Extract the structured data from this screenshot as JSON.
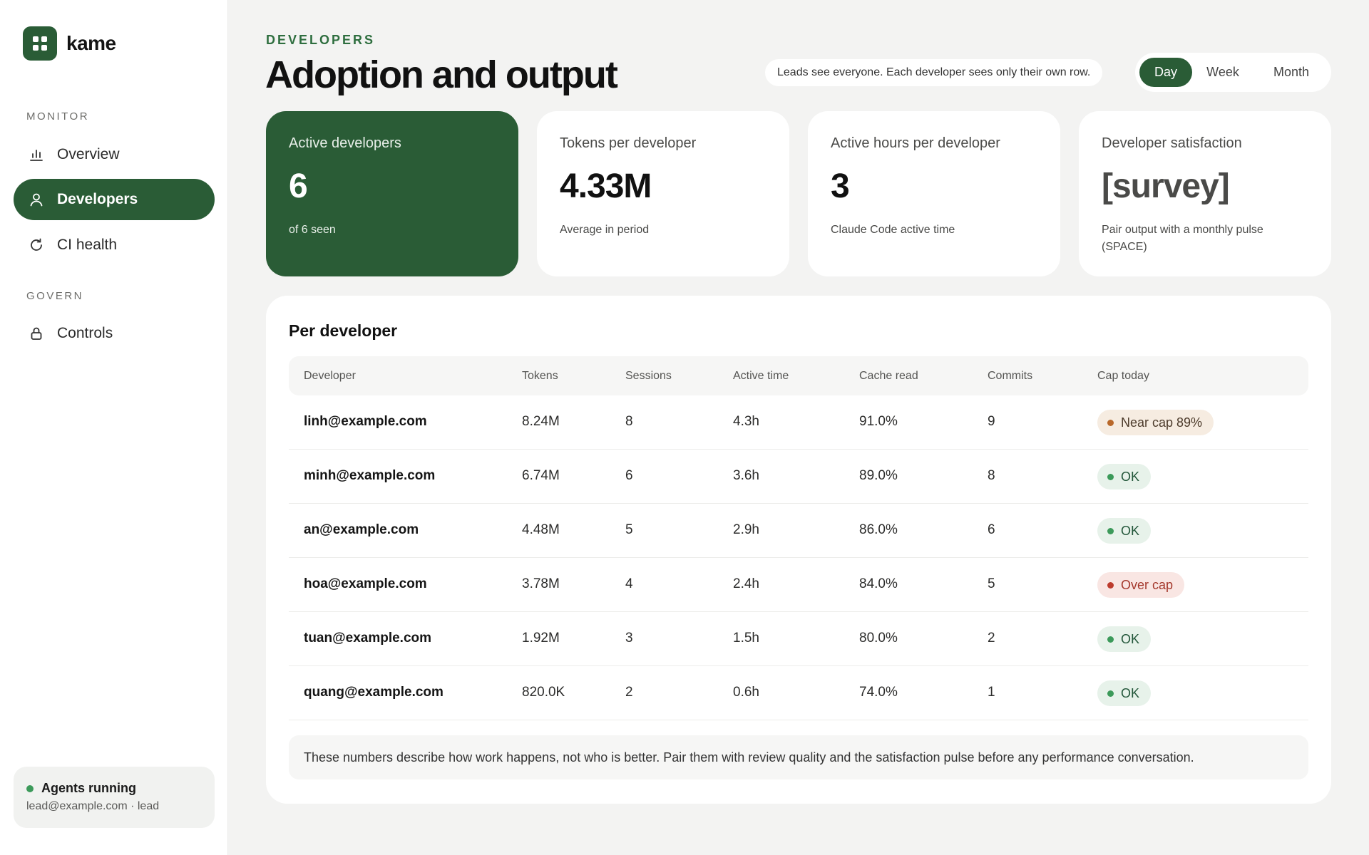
{
  "app": {
    "name": "kame"
  },
  "sidebar": {
    "sections": [
      {
        "label": "MONITOR"
      },
      {
        "label": "GOVERN"
      }
    ],
    "items": [
      {
        "label": "Overview",
        "icon": "bar-chart-icon"
      },
      {
        "label": "Developers",
        "icon": "user-icon",
        "active": true
      },
      {
        "label": "CI health",
        "icon": "refresh-icon"
      },
      {
        "label": "Controls",
        "icon": "lock-icon"
      }
    ],
    "status": {
      "title": "Agents running",
      "user": "lead@example.com · lead"
    }
  },
  "header": {
    "eyebrow": "DEVELOPERS",
    "title": "Adoption and output",
    "visibility_note": "Leads see everyone. Each developer sees only their own row.",
    "period_options": [
      "Day",
      "Week",
      "Month"
    ],
    "selected_period": "Day"
  },
  "stats": [
    {
      "label": "Active developers",
      "value": "6",
      "sub": "of 6 seen"
    },
    {
      "label": "Tokens per developer",
      "value": "4.33M",
      "sub": "Average in period"
    },
    {
      "label": "Active hours per developer",
      "value": "3",
      "sub": "Claude Code active time"
    },
    {
      "label": "Developer satisfaction",
      "value": "[survey]",
      "sub": "Pair output with a monthly pulse (SPACE)"
    }
  ],
  "table": {
    "title": "Per developer",
    "columns": [
      "Developer",
      "Tokens",
      "Sessions",
      "Active time",
      "Cache read",
      "Commits",
      "Cap today"
    ],
    "rows": [
      {
        "developer": "linh@example.com",
        "tokens": "8.24M",
        "sessions": "8",
        "active_time": "4.3h",
        "cache_read": "91.0%",
        "commits": "9",
        "cap": "Near cap 89%",
        "cap_status": "warn"
      },
      {
        "developer": "minh@example.com",
        "tokens": "6.74M",
        "sessions": "6",
        "active_time": "3.6h",
        "cache_read": "89.0%",
        "commits": "8",
        "cap": "OK",
        "cap_status": "ok"
      },
      {
        "developer": "an@example.com",
        "tokens": "4.48M",
        "sessions": "5",
        "active_time": "2.9h",
        "cache_read": "86.0%",
        "commits": "6",
        "cap": "OK",
        "cap_status": "ok"
      },
      {
        "developer": "hoa@example.com",
        "tokens": "3.78M",
        "sessions": "4",
        "active_time": "2.4h",
        "cache_read": "84.0%",
        "commits": "5",
        "cap": "Over cap",
        "cap_status": "over"
      },
      {
        "developer": "tuan@example.com",
        "tokens": "1.92M",
        "sessions": "3",
        "active_time": "1.5h",
        "cache_read": "80.0%",
        "commits": "2",
        "cap": "OK",
        "cap_status": "ok"
      },
      {
        "developer": "quang@example.com",
        "tokens": "820.0K",
        "sessions": "2",
        "active_time": "0.6h",
        "cache_read": "74.0%",
        "commits": "1",
        "cap": "OK",
        "cap_status": "ok"
      }
    ],
    "footnote": "These numbers describe how work happens, not who is better. Pair them with review quality and the satisfaction pulse before any performance conversation."
  },
  "colors": {
    "accent": "#2a5c36",
    "ok": "#3c9a5a",
    "warn": "#b9682a",
    "over": "#bd3b2d"
  }
}
